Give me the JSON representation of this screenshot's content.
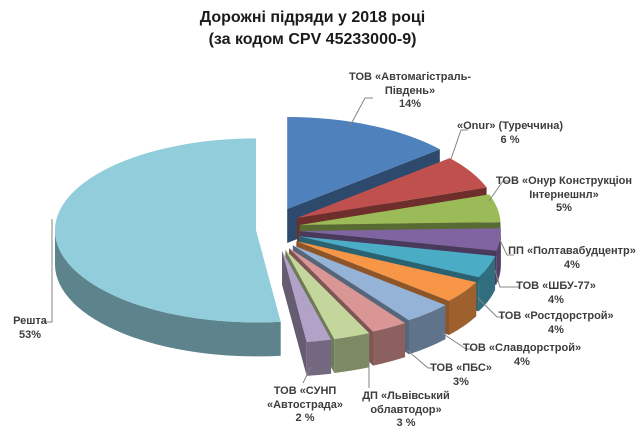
{
  "title": {
    "line1": "Дорожні підряди у 2018 році",
    "line2": "(за кодом CPV 45233000-9)"
  },
  "chart_data": {
    "type": "pie",
    "style": "3d-exploded-pie",
    "title": "Дорожні підряди у 2018 році (за кодом CPV 45233000-9)",
    "legend_position": "none",
    "labels_position": "outside-with-leader-lines",
    "unit": "percent",
    "slices": [
      {
        "name": "ТОВ «Автомагістраль-Південь»",
        "value_pct": 14,
        "label_lines": [
          "ТОВ «Автомагістраль-",
          "Південь»",
          "14%"
        ],
        "color": "#4F81BD"
      },
      {
        "name": "«Onur» (Туреччина)",
        "value_pct": 6,
        "label_lines": [
          "«Onur» (Туреччина)",
          "6 %"
        ],
        "color": "#C0504D"
      },
      {
        "name": "ТОВ «Онур Конструкціон Інтернешнл»",
        "value_pct": 5,
        "label_lines": [
          "ТОВ «Онур Конструкціон",
          "Інтернешнл»",
          "5%"
        ],
        "color": "#9BBB59"
      },
      {
        "name": "ПП «Полтавабудцентр»",
        "value_pct": 4,
        "label_lines": [
          "ПП «Полтавабудцентр»",
          "4%"
        ],
        "color": "#8064A2"
      },
      {
        "name": "ТОВ «ШБУ-77»",
        "value_pct": 4,
        "label_lines": [
          "ТОВ «ШБУ-77»",
          "4%"
        ],
        "color": "#4BACC6"
      },
      {
        "name": "ТОВ «Ростдорстрой»",
        "value_pct": 4,
        "label_lines": [
          "ТОВ «Ростдорстрой»",
          "4%"
        ],
        "color": "#F79646"
      },
      {
        "name": "ТОВ «Славдорстрой»",
        "value_pct": 4,
        "label_lines": [
          "ТОВ «Славдорстрой»",
          "4%"
        ],
        "color": "#95B3D7"
      },
      {
        "name": "ТОВ «ПБС»",
        "value_pct": 3,
        "label_lines": [
          "ТОВ «ПБС»",
          "3%"
        ],
        "color": "#D99694"
      },
      {
        "name": "ДП «Львівський облавтодор»",
        "value_pct": 3,
        "label_lines": [
          "ДП «Львівський",
          "облавтодор»",
          "3 %"
        ],
        "color": "#C3D69B"
      },
      {
        "name": "ТОВ «СУНП «Автострада»",
        "value_pct": 2,
        "label_lines": [
          "ТОВ «СУНП",
          "«Автострада»",
          "2 %"
        ],
        "color": "#B3A2C7"
      },
      {
        "name": "Решта",
        "value_pct": 53,
        "label_lines": [
          "Решта",
          "53%"
        ],
        "color": "#92CDDC"
      }
    ]
  }
}
